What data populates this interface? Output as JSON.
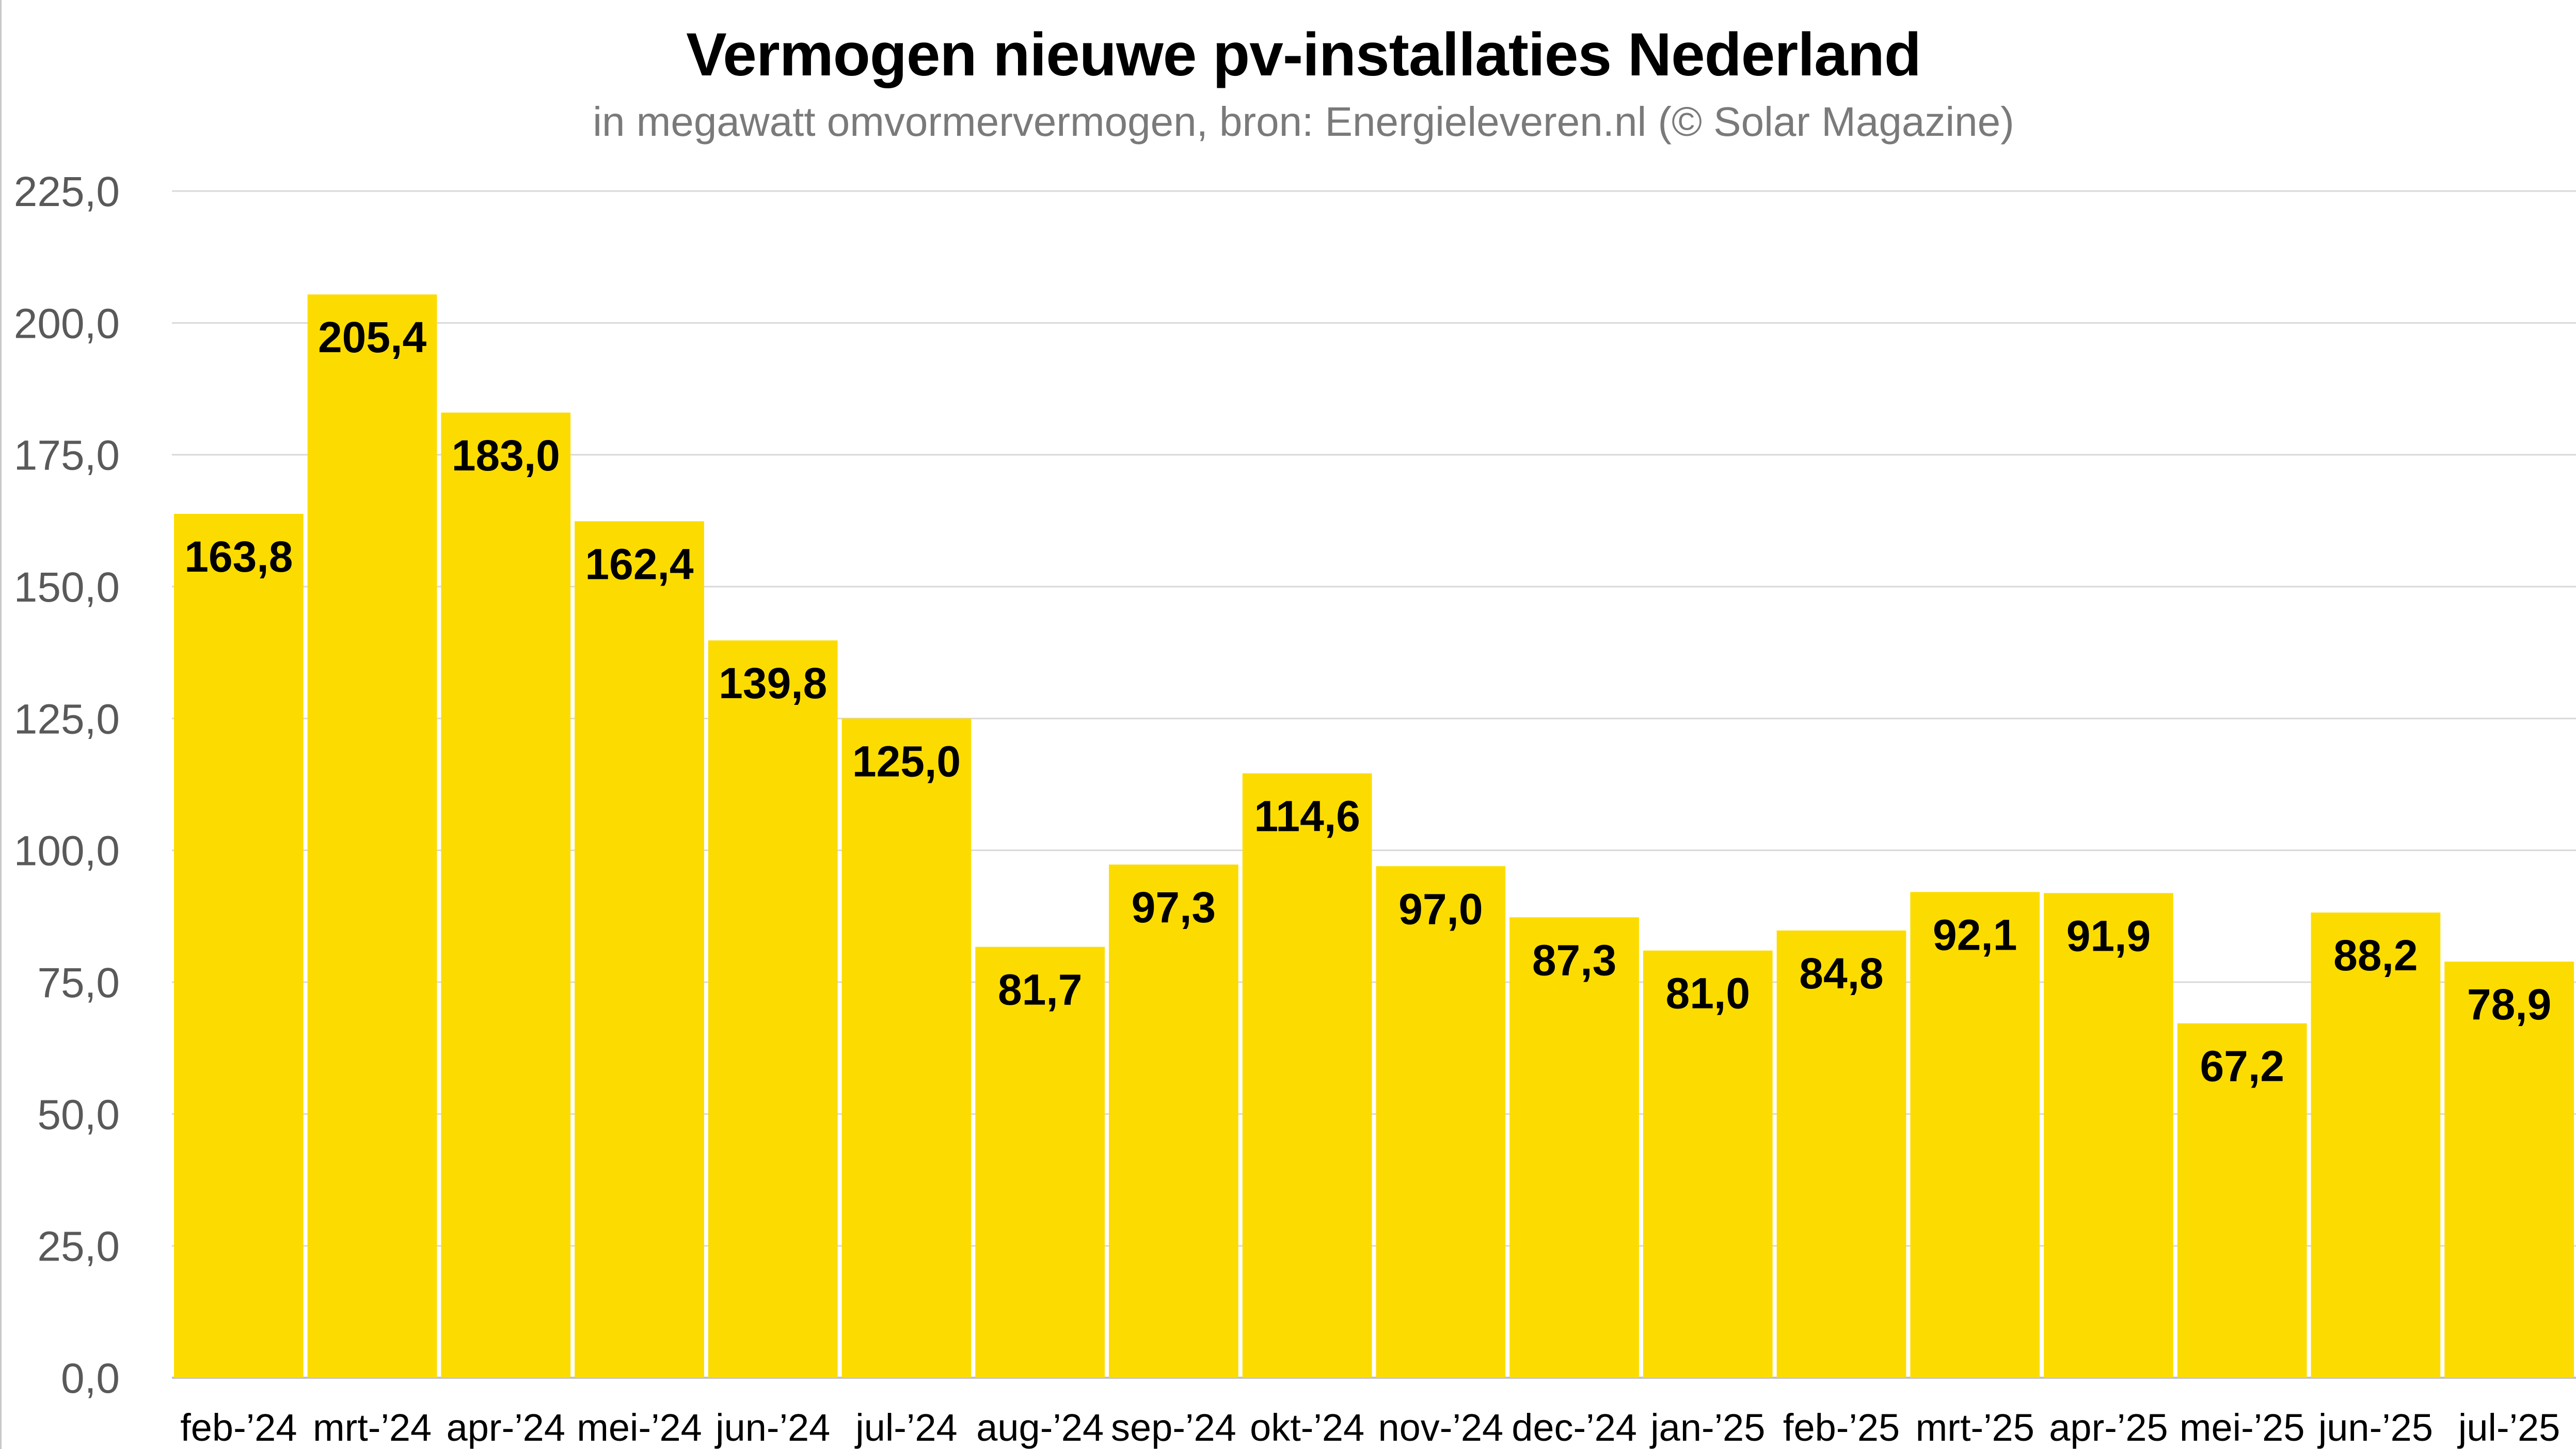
{
  "chart_data": {
    "type": "bar",
    "title": "Vermogen nieuwe pv-installaties Nederland",
    "subtitle": "in megawatt omvormervermogen, bron: Energieleveren.nl (© Solar Magazine)",
    "xlabel": "",
    "ylabel": "",
    "ylim": [
      0,
      225
    ],
    "yticks": [
      "0,0",
      "25,0",
      "50,0",
      "75,0",
      "100,0",
      "125,0",
      "150,0",
      "175,0",
      "200,0",
      "225,0"
    ],
    "categories": [
      "feb-’24",
      "mrt-’24",
      "apr-’24",
      "mei-’24",
      "jun-’24",
      "jul-’24",
      "aug-’24",
      "sep-’24",
      "okt-’24",
      "nov-’24",
      "dec-’24",
      "jan-’25",
      "feb-’25",
      "mrt-’25",
      "apr-’25",
      "mei-’25",
      "jun-’25",
      "jul-’25"
    ],
    "values": [
      163.8,
      205.4,
      183.0,
      162.4,
      139.8,
      125.0,
      81.7,
      97.3,
      114.6,
      97.0,
      87.3,
      81.0,
      84.8,
      92.1,
      91.9,
      67.2,
      88.2,
      78.9
    ],
    "data_labels": [
      "163,8",
      "205,4",
      "183,0",
      "162,4",
      "139,8",
      "125,0",
      "81,7",
      "97,3",
      "114,6",
      "97,0",
      "87,3",
      "81,0",
      "84,8",
      "92,1",
      "91,9",
      "67,2",
      "88,2",
      "78,9"
    ],
    "grid": true,
    "legend": "none",
    "colors": {
      "bar": "#FCDC00",
      "grid": "#d9d9d9",
      "axis_text": "#595959",
      "label_text": "#000000"
    }
  }
}
